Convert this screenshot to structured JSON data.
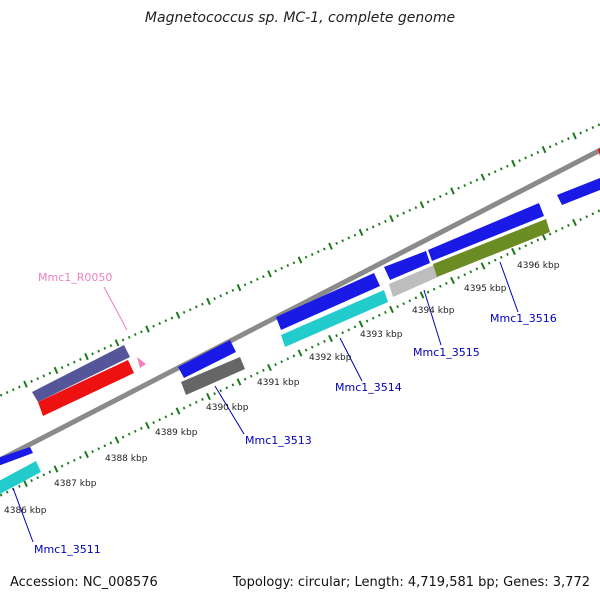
{
  "title": "Magnetococcus sp. MC-1, complete genome",
  "footer": {
    "accession": "Accession: NC_008576",
    "topology": "Topology: circular; Length: 4,719,581 bp; Genes: 3,772"
  },
  "colors": {
    "backbone": "#8a8a8a",
    "tick": "#1a7a1a",
    "gene_label": "#0000bb",
    "rna_label": "#f080c0",
    "blue": "#1a1ae6",
    "cyan": "#22cccc",
    "red": "#ee1111",
    "slate": "#555599",
    "gray_dark": "#666666",
    "gray_light": "#bdbdbd",
    "olive": "#6b8c23"
  },
  "kbp_labels": [
    "4386 kbp",
    "4387 kbp",
    "4388 kbp",
    "4389 kbp",
    "4390 kbp",
    "4391 kbp",
    "4392 kbp",
    "4393 kbp",
    "4394 kbp",
    "4395 kbp",
    "4396 kbp"
  ],
  "gene_labels": {
    "rna": "Mmc1_R0050",
    "g3511": "Mmc1_3511",
    "g3513": "Mmc1_3513",
    "g3514": "Mmc1_3514",
    "g3515": "Mmc1_3515",
    "g3516": "Mmc1_3516"
  }
}
